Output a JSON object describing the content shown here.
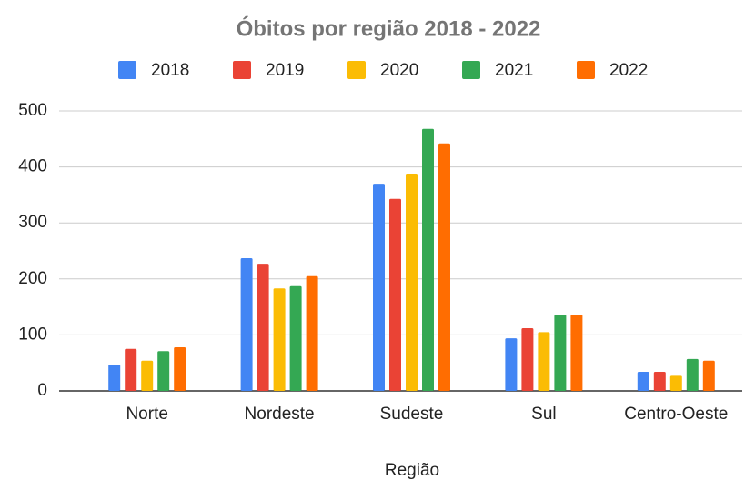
{
  "chart_data": {
    "type": "bar",
    "title": "Óbitos por região 2018 - 2022",
    "x_label": "Região",
    "categories": [
      "Norte",
      "Nordeste",
      "Sudeste",
      "Sul",
      "Centro-Oeste"
    ],
    "series": [
      {
        "name": "2018",
        "color": "#4285f4",
        "values": [
          47,
          237,
          370,
          94,
          34
        ]
      },
      {
        "name": "2019",
        "color": "#ea4335",
        "values": [
          75,
          227,
          343,
          112,
          34
        ]
      },
      {
        "name": "2020",
        "color": "#fbbc04",
        "values": [
          54,
          183,
          388,
          105,
          27
        ]
      },
      {
        "name": "2021",
        "color": "#34a853",
        "values": [
          71,
          187,
          468,
          136,
          57
        ]
      },
      {
        "name": "2022",
        "color": "#ff6d01",
        "values": [
          78,
          205,
          442,
          136,
          54
        ]
      }
    ],
    "ylim": [
      0,
      500
    ],
    "yticks": [
      0,
      100,
      200,
      300,
      400,
      500
    ],
    "grid": true,
    "legend": "top"
  }
}
